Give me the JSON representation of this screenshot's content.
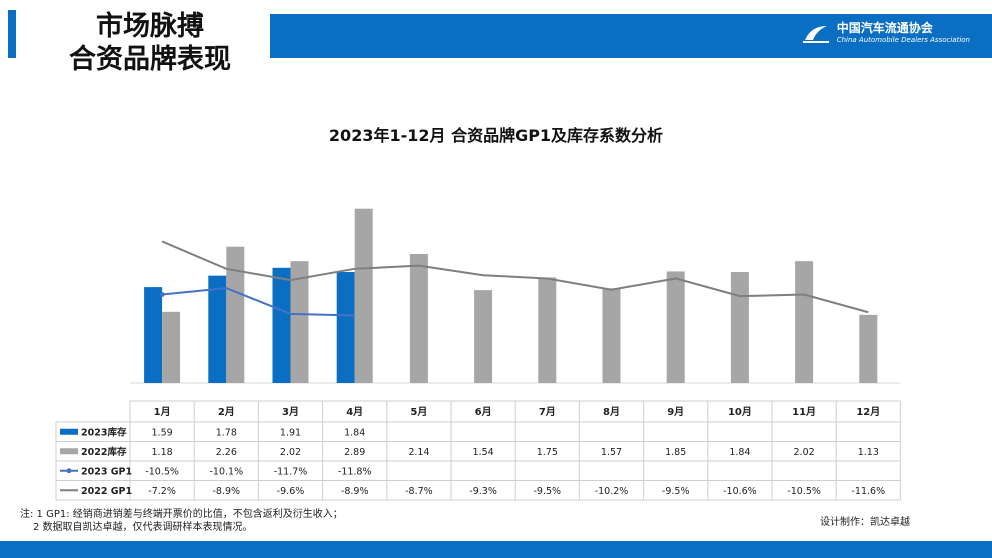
{
  "header": {
    "title_line1": "市场脉搏",
    "title_line2": "合资品牌表现",
    "logo_cn": "中国汽车流通协会",
    "logo_en": "China Automobile Dealers Association"
  },
  "notes": {
    "line1": "注: 1  GP1: 经销商进销差与终端开票价的比值，不包含返利及衍生收入；",
    "line2": "2 数据取自凯达卓越，仅代表调研样本表现情况。"
  },
  "credit": "设计制作：凯达卓越",
  "colors": {
    "blue_bar": "#0a6fc2",
    "gray_bar": "#a6a6a6",
    "blue_line": "#4472c4",
    "gray_line": "#7f7f7f"
  },
  "chart_data": {
    "type": "bar",
    "title": "2023年1-12月 合资品牌GP1及库存系数分析",
    "categories": [
      "1月",
      "2月",
      "3月",
      "4月",
      "5月",
      "6月",
      "7月",
      "8月",
      "9月",
      "10月",
      "11月",
      "12月"
    ],
    "series": [
      {
        "name": "2023库存",
        "kind": "bar",
        "values": [
          1.59,
          1.78,
          1.91,
          1.84,
          null,
          null,
          null,
          null,
          null,
          null,
          null,
          null
        ],
        "labels": [
          "1.59",
          "1.78",
          "1.91",
          "1.84",
          "",
          "",
          "",
          "",
          "",
          "",
          "",
          ""
        ]
      },
      {
        "name": "2022库存",
        "kind": "bar",
        "values": [
          1.18,
          2.26,
          2.02,
          2.89,
          2.14,
          1.54,
          1.75,
          1.57,
          1.85,
          1.84,
          2.02,
          1.13
        ],
        "labels": [
          "1.18",
          "2.26",
          "2.02",
          "2.89",
          "2.14",
          "1.54",
          "1.75",
          "1.57",
          "1.85",
          "1.84",
          "2.02",
          "1.13"
        ]
      },
      {
        "name": "2023 GP1",
        "kind": "line",
        "values": [
          -10.5,
          -10.1,
          -11.7,
          -11.8,
          null,
          null,
          null,
          null,
          null,
          null,
          null,
          null
        ],
        "labels": [
          "-10.5%",
          "-10.1%",
          "-11.7%",
          "-11.8%",
          "",
          "",
          "",
          "",
          "",
          "",
          "",
          ""
        ]
      },
      {
        "name": "2022 GP1",
        "kind": "line",
        "values": [
          -7.2,
          -8.9,
          -9.6,
          -8.9,
          -8.7,
          -9.3,
          -9.5,
          -10.2,
          -9.5,
          -10.6,
          -10.5,
          -11.6
        ],
        "labels": [
          "-7.2%",
          "-8.9%",
          "-9.6%",
          "-8.9%",
          "-8.7%",
          "-9.3%",
          "-9.5%",
          "-10.2%",
          "-9.5%",
          "-10.6%",
          "-10.5%",
          "-11.6%"
        ]
      }
    ],
    "bar_axis_range": [
      0,
      3.2
    ],
    "line_axis_range": [
      -16,
      -4
    ],
    "legend": "data-table"
  }
}
